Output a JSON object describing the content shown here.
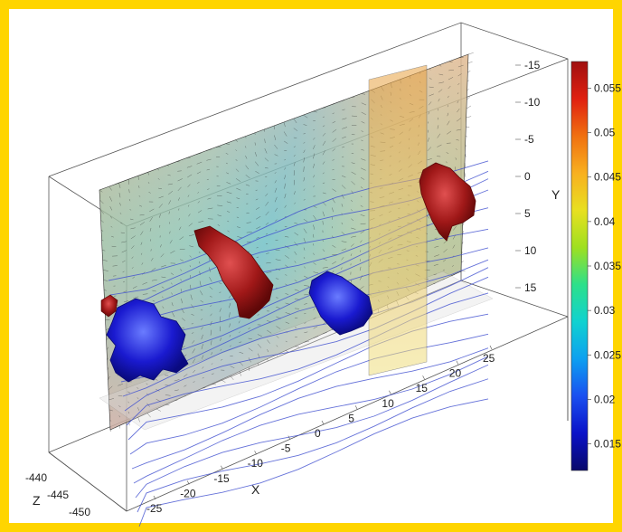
{
  "chart_data": {
    "type": "3d-volume-slice",
    "title": "",
    "x_axis": {
      "label": "X",
      "ticks": [
        "-25",
        "-20",
        "-15",
        "-10",
        "-5",
        "0",
        "5",
        "10",
        "15",
        "20",
        "25"
      ]
    },
    "y_axis": {
      "label": "Y",
      "ticks": [
        "-15",
        "-10",
        "-5",
        "0",
        "5",
        "10",
        "15"
      ]
    },
    "z_axis": {
      "label": "Z",
      "ticks": [
        "-440",
        "-445",
        "-450"
      ]
    },
    "colorbar": {
      "ticks": [
        "0.055",
        "0.05",
        "0.045",
        "0.04",
        "0.035",
        "0.03",
        "0.025",
        "0.02",
        "0.015"
      ],
      "min": 0.012,
      "max": 0.058,
      "colors": [
        "#08086a",
        "#0a12c8",
        "#1a50f0",
        "#0da0f0",
        "#10d2d0",
        "#2ee08a",
        "#9ee020",
        "#e8e020",
        "#f8b020",
        "#f07010",
        "#e02010",
        "#a01010"
      ]
    },
    "features": [
      {
        "name": "isosurface-blue-left",
        "color": "#1a1ad0"
      },
      {
        "name": "isosurface-red-center",
        "color": "#a01818"
      },
      {
        "name": "isosurface-blue-center",
        "color": "#1a1ad0"
      },
      {
        "name": "isosurface-red-right",
        "color": "#a01818"
      },
      {
        "name": "isosurface-red-small-left",
        "color": "#a01818"
      }
    ],
    "grid": false,
    "legend": "right"
  }
}
